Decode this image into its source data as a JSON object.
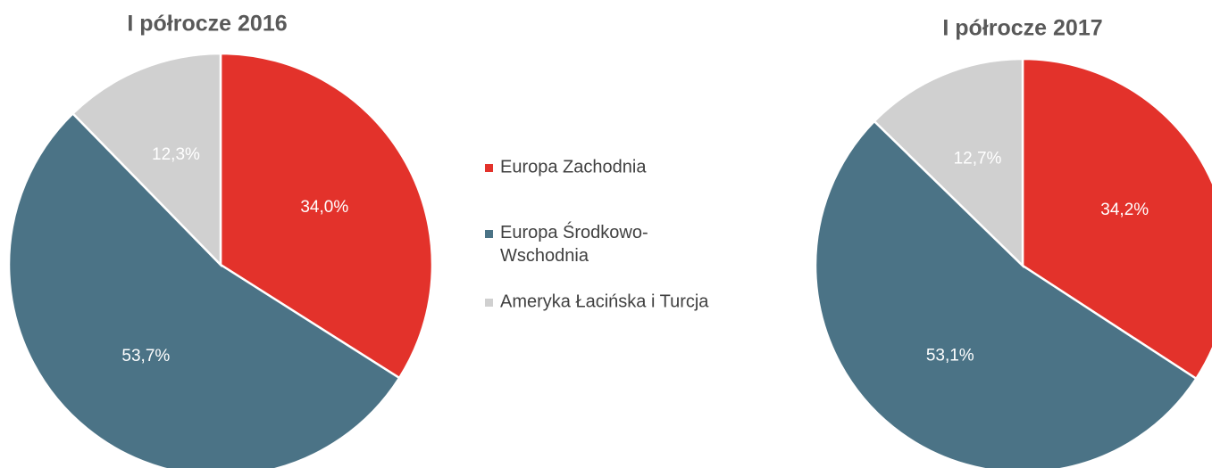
{
  "chart_data": [
    {
      "type": "pie",
      "title": "I półrocze 2016",
      "categories": [
        "Europa Zachodnia",
        "Europa Środkowo-Wschodnia",
        "Ameryka Łacińska i Turcja"
      ],
      "values": [
        34.0,
        53.7,
        12.3
      ],
      "value_labels": [
        "34,0%",
        "53,7%",
        "12,3%"
      ],
      "colors": [
        "#e3322b",
        "#4b7386",
        "#d0d0d0"
      ]
    },
    {
      "type": "pie",
      "title": "I półrocze 2017",
      "categories": [
        "Europa Zachodnia",
        "Europa Środkowo-Wschodnia",
        "Ameryka Łacińska i Turcja"
      ],
      "values": [
        34.2,
        53.1,
        12.7
      ],
      "value_labels": [
        "34,2%",
        "53,1%",
        "12,7%"
      ],
      "colors": [
        "#e3322b",
        "#4b7386",
        "#d0d0d0"
      ]
    }
  ]
}
